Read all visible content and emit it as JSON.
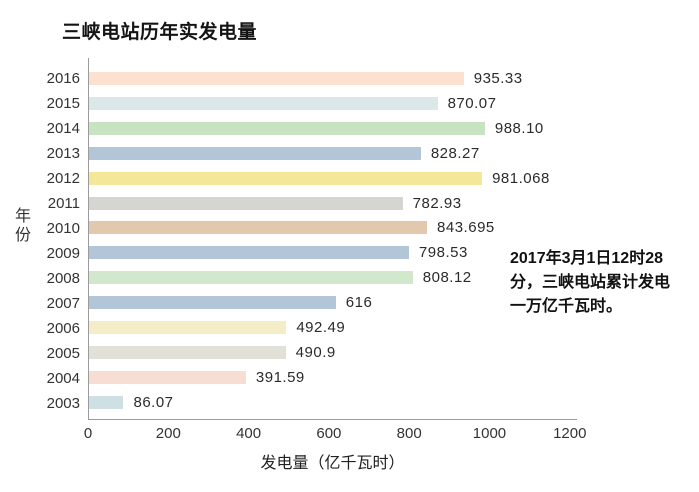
{
  "title": "三峡电站历年实发电量",
  "chart_data": {
    "type": "bar",
    "orientation": "horizontal",
    "title": "三峡电站历年实发电量",
    "xlabel": "发电量（亿千瓦时）",
    "ylabel": "年份",
    "xlim": [
      0,
      1200
    ],
    "x_ticks": [
      "0",
      "200",
      "400",
      "600",
      "800",
      "1000",
      "1200"
    ],
    "x_tick_values": [
      0,
      200,
      400,
      600,
      800,
      1000,
      1200
    ],
    "x_scale_max": 1218,
    "grid": false,
    "legend": false,
    "categories": [
      "2016",
      "2015",
      "2014",
      "2013",
      "2012",
      "2011",
      "2010",
      "2009",
      "2008",
      "2007",
      "2006",
      "2005",
      "2004",
      "2003"
    ],
    "values": [
      935.33,
      870.07,
      988.1,
      828.27,
      981.068,
      782.93,
      843.695,
      798.53,
      808.12,
      616,
      492.49,
      490.9,
      391.59,
      86.07
    ],
    "series": [
      {
        "year": "2016",
        "value": 935.33,
        "label": "935.33",
        "color": "#fce1d1"
      },
      {
        "year": "2015",
        "value": 870.07,
        "label": "870.07",
        "color": "#dbe8e9"
      },
      {
        "year": "2014",
        "value": 988.1,
        "label": "988.10",
        "color": "#c7e3c2"
      },
      {
        "year": "2013",
        "value": 828.27,
        "label": "828.27",
        "color": "#b3c6d8"
      },
      {
        "year": "2012",
        "value": 981.068,
        "label": "981.068",
        "color": "#f5e79a"
      },
      {
        "year": "2011",
        "value": 782.93,
        "label": "782.93",
        "color": "#d5d6d2"
      },
      {
        "year": "2010",
        "value": 843.695,
        "label": "843.695",
        "color": "#e2c9ad"
      },
      {
        "year": "2009",
        "value": 798.53,
        "label": "798.53",
        "color": "#b3c6d8"
      },
      {
        "year": "2008",
        "value": 808.12,
        "label": "808.12",
        "color": "#d2e8cc"
      },
      {
        "year": "2007",
        "value": 616,
        "label": "616",
        "color": "#b3c6d8"
      },
      {
        "year": "2006",
        "value": 492.49,
        "label": "492.49",
        "color": "#f4edc8"
      },
      {
        "year": "2005",
        "value": 490.9,
        "label": "490.9",
        "color": "#e1e1d8"
      },
      {
        "year": "2004",
        "value": 391.59,
        "label": "391.59",
        "color": "#f8ded2"
      },
      {
        "year": "2003",
        "value": 86.07,
        "label": "86.07",
        "color": "#cfe0e4"
      }
    ]
  },
  "annotation": {
    "lines": [
      "2017年3月1日12时28",
      "分，三峡电站累计发电",
      "一万亿千瓦时。"
    ]
  },
  "colors": {
    "axis_line": "#9b9b9b",
    "text": "#333333",
    "title_text": "#141414",
    "annotation_text": "#111111",
    "background": "#ffffff"
  }
}
